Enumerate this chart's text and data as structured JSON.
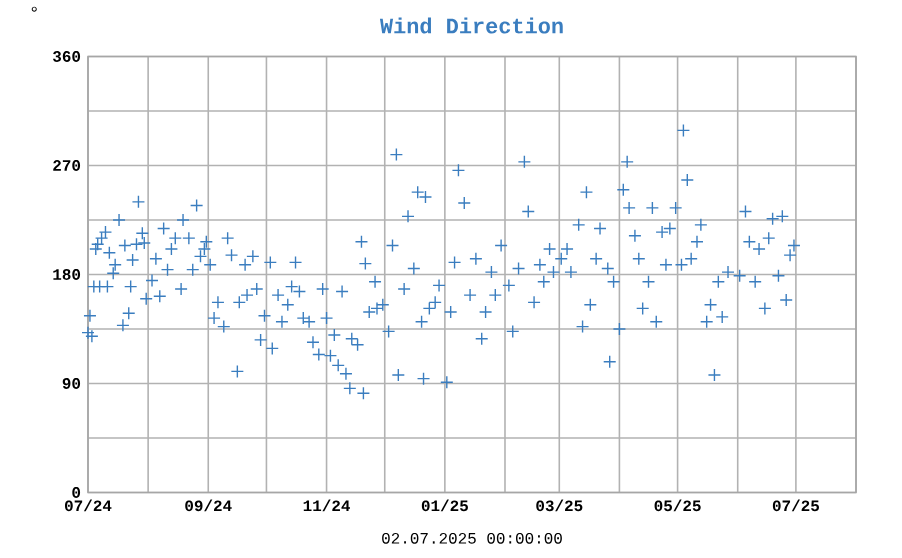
{
  "chart_data": {
    "type": "scatter",
    "title": "Wind Direction",
    "xlabel": "02.07.2025 00:00:00",
    "ylabel": "°",
    "color": "#3a7dbf",
    "marker": "cross",
    "grid": true,
    "xlim": [
      "2024-07-01",
      "2025-08-01"
    ],
    "xticks": [
      {
        "value": "2024-07-01",
        "label": "07/24"
      },
      {
        "value": "2024-08-01",
        "label": null
      },
      {
        "value": "2024-09-01",
        "label": "09/24"
      },
      {
        "value": "2024-10-01",
        "label": null
      },
      {
        "value": "2024-11-01",
        "label": "11/24"
      },
      {
        "value": "2024-12-01",
        "label": null
      },
      {
        "value": "2025-01-01",
        "label": "01/25"
      },
      {
        "value": "2025-02-01",
        "label": null
      },
      {
        "value": "2025-03-01",
        "label": "03/25"
      },
      {
        "value": "2025-04-01",
        "label": null
      },
      {
        "value": "2025-05-01",
        "label": "05/25"
      },
      {
        "value": "2025-06-01",
        "label": null
      },
      {
        "value": "2025-07-01",
        "label": "07/25"
      },
      {
        "value": "2025-08-01",
        "label": null
      }
    ],
    "ylim": [
      0,
      360
    ],
    "yticks": [
      0,
      {
        "value": 45,
        "label": null
      },
      90,
      {
        "value": 135,
        "label": null
      },
      180,
      {
        "value": 225,
        "label": null
      },
      270,
      {
        "value": 315,
        "label": null
      },
      360
    ],
    "x": [
      "2024-07-01",
      "2024-07-02",
      "2024-07-03",
      "2024-07-04",
      "2024-07-05",
      "2024-07-06",
      "2024-07-07",
      "2024-07-08",
      "2024-07-10",
      "2024-07-11",
      "2024-07-12",
      "2024-07-14",
      "2024-07-15",
      "2024-07-17",
      "2024-07-19",
      "2024-07-20",
      "2024-07-22",
      "2024-07-23",
      "2024-07-24",
      "2024-07-26",
      "2024-07-27",
      "2024-07-29",
      "2024-07-30",
      "2024-07-31",
      "2024-08-03",
      "2024-08-05",
      "2024-08-07",
      "2024-08-09",
      "2024-08-11",
      "2024-08-13",
      "2024-08-15",
      "2024-08-18",
      "2024-08-19",
      "2024-08-22",
      "2024-08-24",
      "2024-08-26",
      "2024-08-28",
      "2024-08-30",
      "2024-08-31",
      "2024-09-02",
      "2024-09-04",
      "2024-09-06",
      "2024-09-09",
      "2024-09-11",
      "2024-09-13",
      "2024-09-16",
      "2024-09-17",
      "2024-09-20",
      "2024-09-21",
      "2024-09-24",
      "2024-09-26",
      "2024-09-28",
      "2024-09-30",
      "2024-10-03",
      "2024-10-04",
      "2024-10-07",
      "2024-10-09",
      "2024-10-12",
      "2024-10-14",
      "2024-10-16",
      "2024-10-18",
      "2024-10-20",
      "2024-10-23",
      "2024-10-25",
      "2024-10-28",
      "2024-10-30",
      "2024-11-01",
      "2024-11-03",
      "2024-11-05",
      "2024-11-07",
      "2024-11-09",
      "2024-11-11",
      "2024-11-13",
      "2024-11-14",
      "2024-11-17",
      "2024-11-19",
      "2024-11-20",
      "2024-11-21",
      "2024-11-23",
      "2024-11-26",
      "2024-11-27",
      "2024-11-30",
      "2024-12-03",
      "2024-12-05",
      "2024-12-07",
      "2024-12-08",
      "2024-12-11",
      "2024-12-13",
      "2024-12-16",
      "2024-12-18",
      "2024-12-20",
      "2024-12-21",
      "2024-12-22",
      "2024-12-24",
      "2024-12-27",
      "2024-12-29",
      "2025-01-02",
      "2025-01-04",
      "2025-01-06",
      "2025-01-08",
      "2025-01-11",
      "2025-01-14",
      "2025-01-17",
      "2025-01-20",
      "2025-01-22",
      "2025-01-25",
      "2025-01-27",
      "2025-01-30",
      "2025-02-03",
      "2025-02-05",
      "2025-02-08",
      "2025-02-11",
      "2025-02-13",
      "2025-02-16",
      "2025-02-19",
      "2025-02-21",
      "2025-02-24",
      "2025-02-26",
      "2025-03-02",
      "2025-03-05",
      "2025-03-07",
      "2025-03-11",
      "2025-03-13",
      "2025-03-15",
      "2025-03-17",
      "2025-03-20",
      "2025-03-22",
      "2025-03-26",
      "2025-03-27",
      "2025-03-29",
      "2025-04-01",
      "2025-04-03",
      "2025-04-05",
      "2025-04-06",
      "2025-04-09",
      "2025-04-11",
      "2025-04-13",
      "2025-04-16",
      "2025-04-18",
      "2025-04-20",
      "2025-04-23",
      "2025-04-25",
      "2025-04-27",
      "2025-04-30",
      "2025-05-03",
      "2025-05-04",
      "2025-05-06",
      "2025-05-08",
      "2025-05-11",
      "2025-05-13",
      "2025-05-16",
      "2025-05-18",
      "2025-05-20",
      "2025-05-22",
      "2025-05-24",
      "2025-05-27",
      "2025-06-02",
      "2025-06-05",
      "2025-06-07",
      "2025-06-10",
      "2025-06-12",
      "2025-06-15",
      "2025-06-17",
      "2025-06-19",
      "2025-06-22",
      "2025-06-24",
      "2025-06-26",
      "2025-06-28",
      "2025-06-30"
    ],
    "values": [
      132,
      146,
      129,
      170,
      201,
      205,
      170,
      210,
      215,
      170,
      198,
      181,
      188,
      225,
      138,
      204,
      148,
      170,
      192,
      205,
      240,
      214,
      206,
      160,
      175,
      193,
      162,
      218,
      184,
      201,
      210,
      168,
      225,
      210,
      184,
      237,
      195,
      201,
      207,
      188,
      144,
      157,
      137,
      210,
      196,
      100,
      157,
      188,
      163,
      195,
      168,
      126,
      146,
      190,
      119,
      163,
      141,
      155,
      170,
      190,
      166,
      144,
      141,
      124,
      114,
      168,
      144,
      113,
      130,
      105,
      166,
      98,
      86,
      127,
      122,
      207,
      82,
      189,
      149,
      174,
      152,
      155,
      133,
      204,
      279,
      97,
      168,
      228,
      185,
      248,
      141,
      94,
      244,
      152,
      157,
      171,
      91,
      149,
      190,
      266,
      239,
      163,
      193,
      127,
      149,
      182,
      163,
      204,
      171,
      133,
      185,
      273,
      232,
      157,
      188,
      174,
      201,
      182,
      193,
      201,
      182,
      221,
      137,
      248,
      155,
      193,
      218,
      185,
      108,
      174,
      135,
      250,
      273,
      235,
      212,
      193,
      152,
      174,
      235,
      141,
      215,
      188,
      218,
      235,
      188,
      299,
      258,
      193,
      207,
      221,
      141,
      155,
      97,
      174,
      145,
      182,
      179,
      232,
      207,
      174,
      201,
      152,
      210,
      226,
      179,
      228,
      159,
      196,
      204
    ]
  }
}
